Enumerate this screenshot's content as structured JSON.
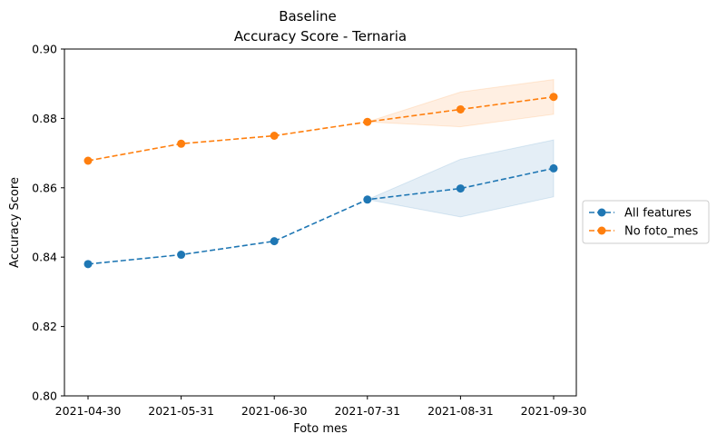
{
  "chart_data": {
    "type": "line",
    "title": "Baseline",
    "subtitle": "Accuracy Score - Ternaria",
    "xlabel": "Foto mes",
    "ylabel": "Accuracy Score",
    "ylim": [
      0.8,
      0.9
    ],
    "yticks": [
      "0.80",
      "0.82",
      "0.84",
      "0.86",
      "0.88",
      "0.90"
    ],
    "categories": [
      "2021-04-30",
      "2021-05-31",
      "2021-06-30",
      "2021-07-31",
      "2021-08-31",
      "2021-09-30"
    ],
    "grid": false,
    "legend_position": "right",
    "series": [
      {
        "name": "All features",
        "color": "#1f77b4",
        "linestyle": "dashed",
        "marker": "circle",
        "values": [
          0.838,
          0.8407,
          0.8446,
          0.8566,
          0.8598,
          0.8656
        ],
        "band_lower": [
          null,
          null,
          null,
          0.8566,
          0.8516,
          0.8574
        ],
        "band_upper": [
          null,
          null,
          null,
          0.8566,
          0.8682,
          0.8738
        ]
      },
      {
        "name": "No foto_mes",
        "color": "#ff7f0e",
        "linestyle": "dashed",
        "marker": "circle",
        "values": [
          0.8678,
          0.8727,
          0.875,
          0.879,
          0.8826,
          0.8862
        ],
        "band_lower": [
          null,
          null,
          null,
          0.879,
          0.8776,
          0.8812
        ],
        "band_upper": [
          null,
          null,
          null,
          0.879,
          0.8876,
          0.8912
        ]
      }
    ]
  }
}
